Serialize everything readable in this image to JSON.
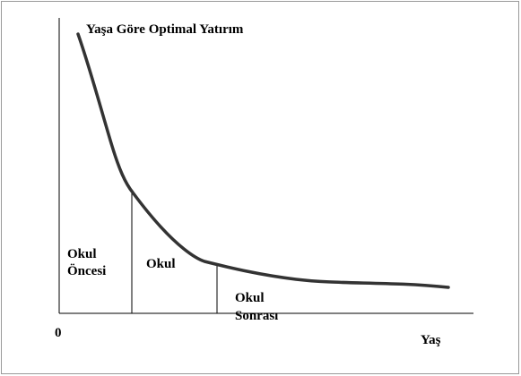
{
  "title": "Yaşa Göre Optimal Yatırım",
  "regions": [
    {
      "lines": [
        "Okul",
        "Öncesi"
      ]
    },
    {
      "lines": [
        "Okul"
      ]
    },
    {
      "lines": [
        "Okul",
        "Sonrası"
      ]
    }
  ],
  "axis": {
    "origin": "0",
    "x_label": "Yaş"
  }
}
